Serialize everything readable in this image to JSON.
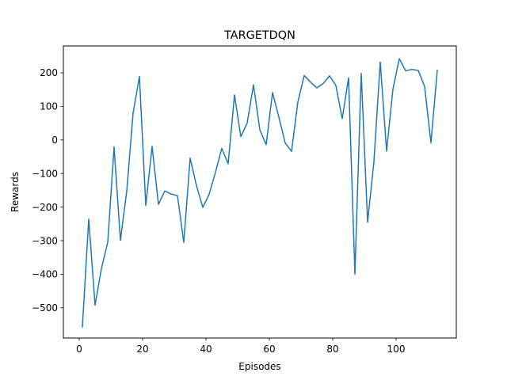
{
  "chart_data": {
    "type": "line",
    "title": "TARGETDQN",
    "xlabel": "Episodes",
    "ylabel": "Rewards",
    "xlim": [
      -5,
      119
    ],
    "ylim": [
      -590,
      280
    ],
    "xticks": [
      0,
      20,
      40,
      60,
      80,
      100
    ],
    "yticks": [
      -500,
      -400,
      -300,
      -200,
      -100,
      0,
      100,
      200
    ],
    "grid": false,
    "colors": {
      "line": "#1f77b4",
      "axes": "#000000",
      "background": "#ffffff"
    },
    "series": [
      {
        "name": "",
        "x": [
          1,
          3,
          5,
          7,
          9,
          11,
          13,
          15,
          17,
          19,
          21,
          23,
          25,
          27,
          29,
          31,
          33,
          35,
          37,
          39,
          41,
          43,
          45,
          47,
          49,
          51,
          53,
          55,
          57,
          59,
          61,
          63,
          65,
          67,
          69,
          71,
          73,
          75,
          77,
          79,
          81,
          83,
          85,
          87,
          89,
          91,
          93,
          95,
          97,
          99,
          101,
          103,
          105,
          107,
          109,
          111,
          113
        ],
        "y": [
          -557,
          -236,
          -492,
          -383,
          -305,
          -21,
          -299,
          -152,
          80,
          189,
          -195,
          -19,
          -192,
          -152,
          -161,
          -166,
          -305,
          -54,
          -136,
          -201,
          -162,
          -96,
          -25,
          -71,
          134,
          10,
          50,
          164,
          30,
          -14,
          141,
          68,
          -9,
          -34,
          113,
          192,
          172,
          155,
          168,
          191,
          162,
          63,
          185,
          -400,
          198,
          -245,
          -65,
          232,
          -33,
          151,
          242,
          206,
          210,
          207,
          159,
          -9,
          208
        ]
      }
    ]
  }
}
